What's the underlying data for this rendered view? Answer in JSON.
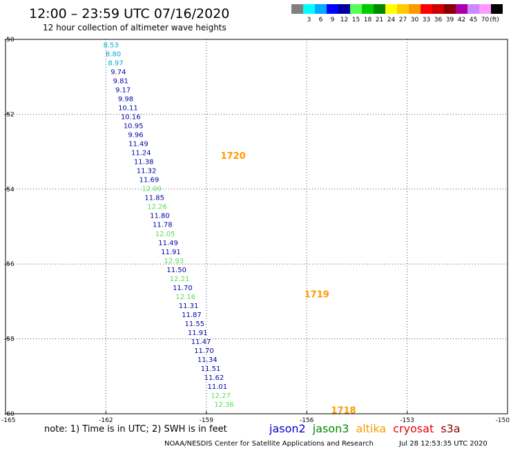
{
  "title": "12:00 – 23:59 UTC 07/16/2020",
  "subtitle": "12 hour collection of altimeter wave heights",
  "note": "note: 1) Time is in UTC; 2) SWH is in feet",
  "footer_left": "NOAA/NESDIS Center for Satellite Applications and Research",
  "footer_right": "Jul 28 12:53:35 UTC 2020",
  "color_scale": {
    "unit": "(ft)",
    "bins": [
      {
        "color": "#808080",
        "label": ""
      },
      {
        "color": "#00ffff",
        "label": "3"
      },
      {
        "color": "#00aaff",
        "label": "6"
      },
      {
        "color": "#0000ff",
        "label": "9"
      },
      {
        "color": "#0000a0",
        "label": "12"
      },
      {
        "color": "#55ff55",
        "label": "15"
      },
      {
        "color": "#00cc00",
        "label": "18"
      },
      {
        "color": "#008800",
        "label": "21"
      },
      {
        "color": "#ffff00",
        "label": "24"
      },
      {
        "color": "#ffcc00",
        "label": "27"
      },
      {
        "color": "#ff9900",
        "label": "30"
      },
      {
        "color": "#ff0000",
        "label": "33"
      },
      {
        "color": "#cc0000",
        "label": "36"
      },
      {
        "color": "#880000",
        "label": "39"
      },
      {
        "color": "#aa00aa",
        "label": "42"
      },
      {
        "color": "#cc88ff",
        "label": "45"
      },
      {
        "color": "#ff99ff",
        "label": "70"
      },
      {
        "color": "#000000",
        "label": ""
      }
    ]
  },
  "satellites": [
    {
      "name": "jason2",
      "color": "#0000cc"
    },
    {
      "name": "jason3",
      "color": "#008800"
    },
    {
      "name": "altika",
      "color": "#ff9900"
    },
    {
      "name": "cryosat",
      "color": "#ee0000"
    },
    {
      "name": "s3a",
      "color": "#880000"
    }
  ],
  "chart_data": {
    "type": "scatter",
    "title": "12:00 – 23:59 UTC 07/16/2020",
    "xlim": [
      -165,
      -150
    ],
    "ylim": [
      -60,
      -50
    ],
    "x_ticks": [
      {
        "value": -165,
        "label": "-165"
      },
      {
        "value": -162,
        "label": "-162"
      },
      {
        "value": -159,
        "label": "-159"
      },
      {
        "value": -156,
        "label": "-156"
      },
      {
        "value": -153,
        "label": "-153"
      },
      {
        "value": -150,
        "label": "-150"
      }
    ],
    "y_ticks": [
      {
        "value": -50,
        "label": "-50"
      },
      {
        "value": -52,
        "label": "-52"
      },
      {
        "value": -54,
        "label": "-54"
      },
      {
        "value": -56,
        "label": "-56"
      },
      {
        "value": -58,
        "label": "-58"
      },
      {
        "value": -60,
        "label": "-60"
      }
    ],
    "grid": true,
    "points": [
      {
        "lon": -161.85,
        "lat": -50.14,
        "swh": "8.53",
        "color": "#00aacc"
      },
      {
        "lon": -161.78,
        "lat": -50.38,
        "swh": "8.80",
        "color": "#00aacc"
      },
      {
        "lon": -161.71,
        "lat": -50.62,
        "swh": "8.97",
        "color": "#00aacc"
      },
      {
        "lon": -161.63,
        "lat": -50.86,
        "swh": "9.74",
        "color": "#0000aa"
      },
      {
        "lon": -161.56,
        "lat": -51.1,
        "swh": "9.81",
        "color": "#0000aa"
      },
      {
        "lon": -161.49,
        "lat": -51.34,
        "swh": "9.17",
        "color": "#0000aa"
      },
      {
        "lon": -161.41,
        "lat": -51.58,
        "swh": "9.98",
        "color": "#0000aa"
      },
      {
        "lon": -161.34,
        "lat": -51.82,
        "swh": "10.11",
        "color": "#0000aa"
      },
      {
        "lon": -161.26,
        "lat": -52.06,
        "swh": "10.16",
        "color": "#0000aa"
      },
      {
        "lon": -161.18,
        "lat": -52.3,
        "swh": "10.95",
        "color": "#0000aa"
      },
      {
        "lon": -161.11,
        "lat": -52.54,
        "swh": "9.96",
        "color": "#0000aa"
      },
      {
        "lon": -161.03,
        "lat": -52.78,
        "swh": "11.49",
        "color": "#0000aa"
      },
      {
        "lon": -160.95,
        "lat": -53.02,
        "swh": "11.24",
        "color": "#0000aa"
      },
      {
        "lon": -160.87,
        "lat": -53.26,
        "swh": "11.38",
        "color": "#0000aa"
      },
      {
        "lon": -160.79,
        "lat": -53.5,
        "swh": "11.32",
        "color": "#0000aa"
      },
      {
        "lon": -160.71,
        "lat": -53.74,
        "swh": "11.69",
        "color": "#0000aa"
      },
      {
        "lon": -160.63,
        "lat": -53.98,
        "swh": "12.09",
        "color": "#55dd55"
      },
      {
        "lon": -160.55,
        "lat": -54.22,
        "swh": "11.85",
        "color": "#0000aa"
      },
      {
        "lon": -160.47,
        "lat": -54.46,
        "swh": "12.26",
        "color": "#55dd55"
      },
      {
        "lon": -160.39,
        "lat": -54.7,
        "swh": "11.80",
        "color": "#0000aa"
      },
      {
        "lon": -160.31,
        "lat": -54.94,
        "swh": "11.78",
        "color": "#0000aa"
      },
      {
        "lon": -160.23,
        "lat": -55.18,
        "swh": "12.05",
        "color": "#55dd55"
      },
      {
        "lon": -160.14,
        "lat": -55.42,
        "swh": "11.49",
        "color": "#0000aa"
      },
      {
        "lon": -160.06,
        "lat": -55.66,
        "swh": "11.91",
        "color": "#0000aa"
      },
      {
        "lon": -159.97,
        "lat": -55.9,
        "swh": "12.93",
        "color": "#55dd55"
      },
      {
        "lon": -159.89,
        "lat": -56.14,
        "swh": "11.50",
        "color": "#0000aa"
      },
      {
        "lon": -159.8,
        "lat": -56.38,
        "swh": "12.21",
        "color": "#55dd55"
      },
      {
        "lon": -159.71,
        "lat": -56.62,
        "swh": "11.70",
        "color": "#0000aa"
      },
      {
        "lon": -159.62,
        "lat": -56.86,
        "swh": "12.16",
        "color": "#55dd55"
      },
      {
        "lon": -159.53,
        "lat": -57.1,
        "swh": "11.31",
        "color": "#0000aa"
      },
      {
        "lon": -159.44,
        "lat": -57.34,
        "swh": "11.87",
        "color": "#0000aa"
      },
      {
        "lon": -159.35,
        "lat": -57.58,
        "swh": "11.55",
        "color": "#0000aa"
      },
      {
        "lon": -159.26,
        "lat": -57.82,
        "swh": "11.91",
        "color": "#0000aa"
      },
      {
        "lon": -159.16,
        "lat": -58.06,
        "swh": "11.47",
        "color": "#0000aa"
      },
      {
        "lon": -159.07,
        "lat": -58.3,
        "swh": "11.70",
        "color": "#0000aa"
      },
      {
        "lon": -158.97,
        "lat": -58.54,
        "swh": "11.34",
        "color": "#0000aa"
      },
      {
        "lon": -158.87,
        "lat": -58.78,
        "swh": "11.51",
        "color": "#0000aa"
      },
      {
        "lon": -158.77,
        "lat": -59.02,
        "swh": "11.62",
        "color": "#0000aa"
      },
      {
        "lon": -158.67,
        "lat": -59.26,
        "swh": "11.01",
        "color": "#0000aa"
      },
      {
        "lon": -158.57,
        "lat": -59.5,
        "swh": "12.27",
        "color": "#55dd55"
      },
      {
        "lon": -158.47,
        "lat": -59.74,
        "swh": "12.36",
        "color": "#55dd55"
      }
    ],
    "time_labels": [
      {
        "lon": -158.2,
        "lat": -53.1,
        "text": "1720",
        "color": "#ff9900"
      },
      {
        "lon": -155.7,
        "lat": -56.8,
        "text": "1719",
        "color": "#ff9900"
      },
      {
        "lon": -154.9,
        "lat": -59.9,
        "text": "1718",
        "color": "#ff9900"
      }
    ]
  }
}
